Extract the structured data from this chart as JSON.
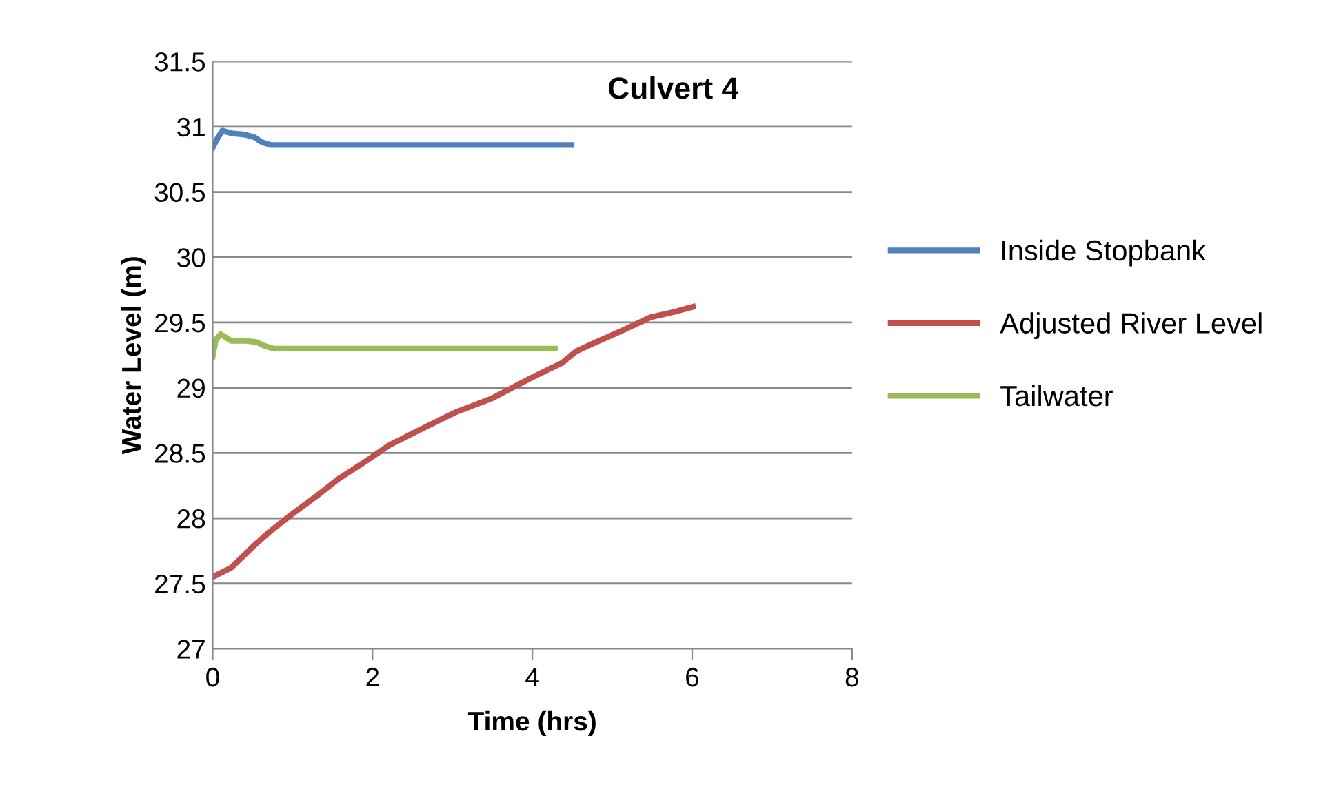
{
  "chart_data": {
    "type": "line",
    "title": "Culvert 4",
    "xlabel": "Time (hrs)",
    "ylabel": "Water Level (m)",
    "xlim": [
      0,
      8
    ],
    "xticks": [
      0,
      2,
      4,
      6,
      8
    ],
    "ylim": [
      27,
      31.5
    ],
    "yticks": [
      27,
      27.5,
      28,
      28.5,
      29,
      29.5,
      30,
      30.5,
      31,
      31.5
    ],
    "grid": "y",
    "legend": "right",
    "marker": "none",
    "line_style": "solid",
    "series": [
      {
        "name": "Inside Stopbank",
        "color": "#4f81bd",
        "x": [
          0,
          0.05,
          0.12,
          0.23,
          0.4,
          0.52,
          0.62,
          0.73,
          1.5,
          3,
          4.49
        ],
        "values": [
          30.84,
          30.9,
          30.97,
          30.95,
          30.94,
          30.92,
          30.88,
          30.86,
          30.86,
          30.86,
          30.86
        ]
      },
      {
        "name": "Adjusted River Level",
        "color": "#c0504d",
        "x": [
          0,
          0.23,
          0.5,
          0.7,
          0.99,
          1.3,
          1.57,
          1.9,
          2.21,
          2.6,
          3.03,
          3.5,
          4,
          4.37,
          4.55,
          4.8,
          5.13,
          5.48,
          5.77,
          6.01
        ],
        "values": [
          27.55,
          27.62,
          27.78,
          27.89,
          28.03,
          28.17,
          28.3,
          28.43,
          28.56,
          28.68,
          28.81,
          28.92,
          29.08,
          29.19,
          29.28,
          29.35,
          29.44,
          29.54,
          29.58,
          29.62
        ]
      },
      {
        "name": "Tailwater",
        "color": "#9bbb59",
        "x": [
          0,
          0.04,
          0.1,
          0.23,
          0.4,
          0.55,
          0.65,
          0.76,
          2,
          4.28
        ],
        "values": [
          29.24,
          29.37,
          29.41,
          29.36,
          29.36,
          29.35,
          29.32,
          29.3,
          29.3,
          29.3
        ]
      }
    ]
  }
}
